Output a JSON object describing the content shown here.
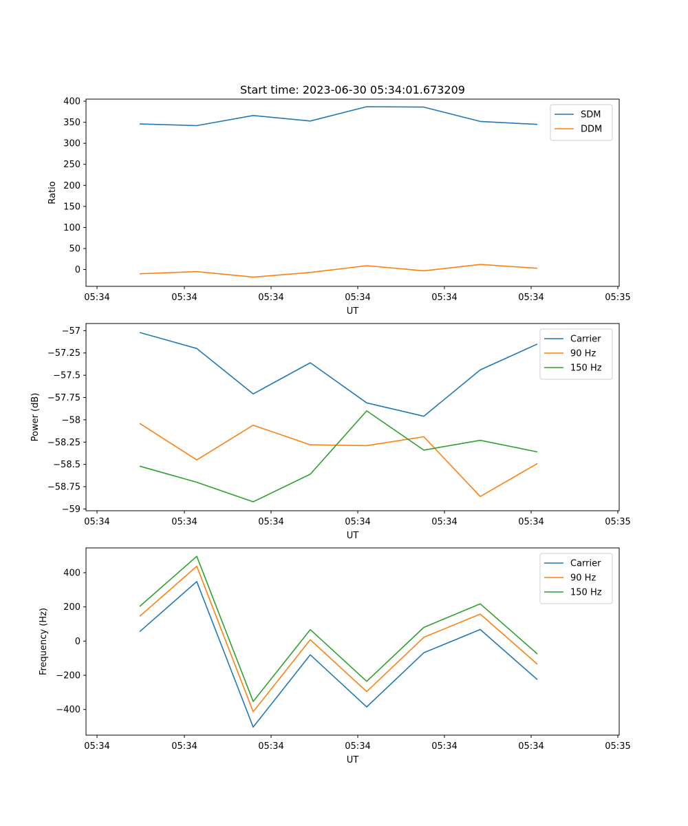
{
  "figure": {
    "title": "Start time: 2023-06-30 05:34:01.673209"
  },
  "chart_data": [
    {
      "type": "line",
      "xlabel": "UT",
      "ylabel": "Ratio",
      "x_ticks": [
        "05:34",
        "05:34",
        "05:34",
        "05:34",
        "05:34",
        "05:34",
        "05:35"
      ],
      "ylim": [
        -40,
        405
      ],
      "y_ticks": [
        0,
        50,
        100,
        150,
        200,
        250,
        300,
        350,
        400
      ],
      "legend": "top-right",
      "series": [
        {
          "name": "SDM",
          "color": "#1f77b4",
          "values": [
            346,
            342,
            366,
            353,
            387,
            386,
            352,
            345
          ]
        },
        {
          "name": "DDM",
          "color": "#ff7f0e",
          "values": [
            -10,
            -5,
            -18,
            -7,
            9,
            -3,
            12,
            3
          ]
        }
      ]
    },
    {
      "type": "line",
      "xlabel": "UT",
      "ylabel": "Power (dB)",
      "x_ticks": [
        "05:34",
        "05:34",
        "05:34",
        "05:34",
        "05:34",
        "05:34",
        "05:35"
      ],
      "ylim": [
        -59.02,
        -56.92
      ],
      "y_ticks": [
        -59.0,
        -58.75,
        -58.5,
        -58.25,
        -58.0,
        -57.75,
        -57.5,
        -57.25,
        -57.0
      ],
      "legend": "top-right",
      "series": [
        {
          "name": "Carrier",
          "color": "#1f77b4",
          "values": [
            -57.02,
            -57.2,
            -57.71,
            -57.36,
            -57.81,
            -57.96,
            -57.44,
            -57.15
          ]
        },
        {
          "name": "90 Hz",
          "color": "#ff7f0e",
          "values": [
            -58.04,
            -58.45,
            -58.06,
            -58.28,
            -58.29,
            -58.19,
            -58.86,
            -58.49
          ]
        },
        {
          "name": "150 Hz",
          "color": "#2ca02c",
          "values": [
            -58.52,
            -58.7,
            -58.92,
            -58.61,
            -57.9,
            -58.34,
            -58.23,
            -58.36
          ]
        }
      ]
    },
    {
      "type": "line",
      "xlabel": "UT",
      "ylabel": "Frequency (Hz)",
      "x_ticks": [
        "05:34",
        "05:34",
        "05:34",
        "05:34",
        "05:34",
        "05:34",
        "05:35"
      ],
      "ylim": [
        -550,
        545
      ],
      "y_ticks": [
        -400,
        -200,
        0,
        200,
        400
      ],
      "legend": "top-right",
      "series": [
        {
          "name": "Carrier",
          "color": "#1f77b4",
          "values": [
            55,
            348,
            -503,
            -80,
            -385,
            -68,
            68,
            -225
          ]
        },
        {
          "name": "90 Hz",
          "color": "#ff7f0e",
          "values": [
            145,
            438,
            -413,
            8,
            -295,
            22,
            158,
            -135
          ]
        },
        {
          "name": "150 Hz",
          "color": "#2ca02c",
          "values": [
            203,
            496,
            -353,
            67,
            -235,
            80,
            218,
            -75
          ]
        }
      ]
    }
  ]
}
